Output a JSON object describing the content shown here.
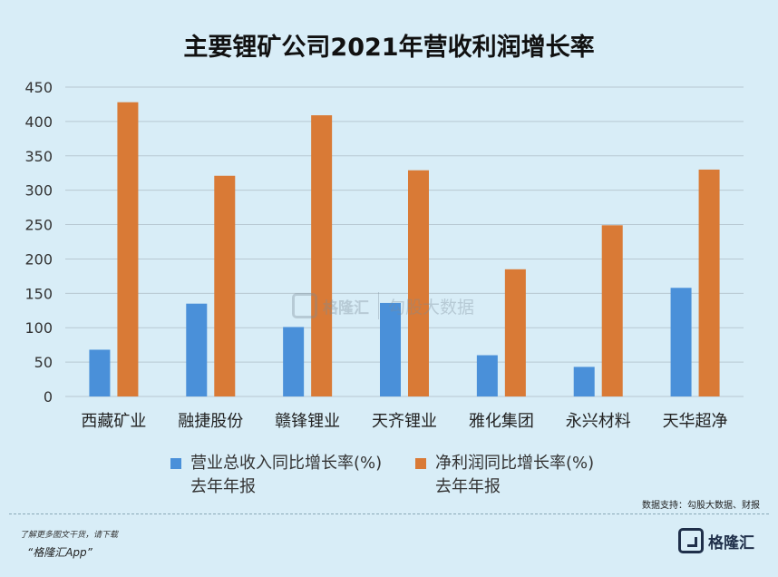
{
  "chart_data": {
    "type": "bar",
    "title": "主要锂矿公司2021年营收利润增长率",
    "categories": [
      "西藏矿业",
      "融捷股份",
      "赣锋锂业",
      "天齐锂业",
      "雅化集团",
      "永兴材料",
      "天华超净"
    ],
    "series": [
      {
        "name": "营业总收入同比增长率(%) 去年年报",
        "color": "#4a90d9",
        "values": [
          68,
          135,
          101,
          136,
          60,
          43,
          158
        ]
      },
      {
        "name": "净利润同比增长率(%) 去年年报",
        "color": "#d97a36",
        "values": [
          428,
          321,
          409,
          329,
          185,
          249,
          330
        ]
      }
    ],
    "yticks": [
      "0",
      "50",
      "100",
      "150",
      "200",
      "250",
      "300",
      "350",
      "400",
      "450"
    ],
    "ylim": [
      0,
      450
    ],
    "grid": true,
    "legend_position": "bottom"
  },
  "legend": {
    "series1_line1": "营业总收入同比增长率(%)",
    "series1_line2": "去年年报",
    "series2_line1": "净利润同比增长率(%)",
    "series2_line2": "去年年报"
  },
  "source": "数据支持：勾股大数据、财报",
  "footer": {
    "line1": "了解更多图文干货，请下载",
    "line2": "“格隆汇App”"
  },
  "logo": {
    "text": "格隆汇"
  },
  "watermark": {
    "brand": "格隆汇",
    "brand2": "勾股大数据"
  },
  "colors": {
    "background": "#d8edf7",
    "grid": "#b8c8d2"
  }
}
